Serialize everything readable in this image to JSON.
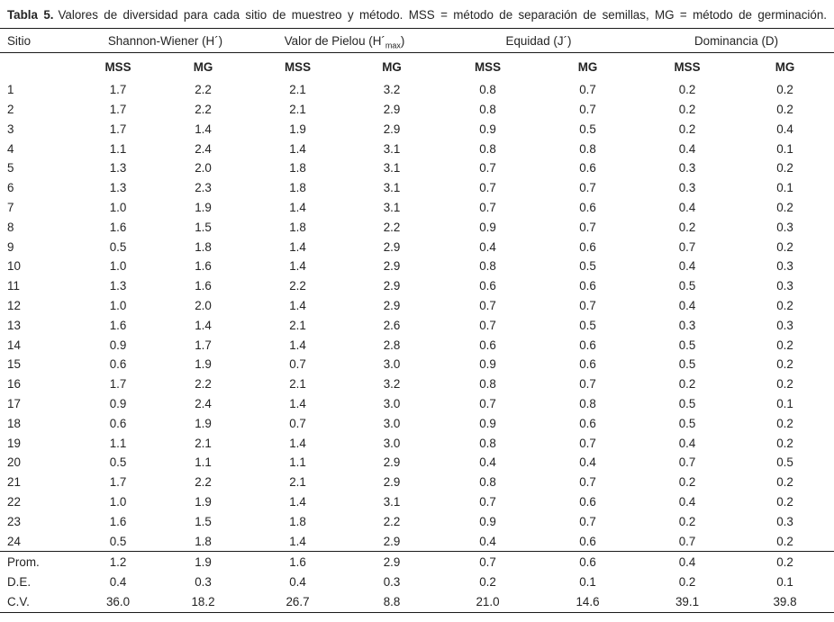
{
  "caption": {
    "label": "Tabla 5.",
    "text": "Valores de diversidad para cada sitio de muestreo y método. MSS = método de separación de semillas, MG = método de germinación."
  },
  "header": {
    "site": "Sitio",
    "groups": {
      "shannon": "Shannon-Wiener (H´)",
      "pielou_pre": "Valor de Pielou (H´",
      "pielou_sub": "max",
      "pielou_post": ")",
      "equidad": "Equidad (J´)",
      "dominancia": "Dominancia (D)"
    },
    "subcols": [
      "MSS",
      "MG",
      "MSS",
      "MG",
      "MSS",
      "MG",
      "MSS",
      "MG"
    ]
  },
  "table": {
    "rows": [
      [
        "1",
        "1.7",
        "2.2",
        "2.1",
        "3.2",
        "0.8",
        "0.7",
        "0.2",
        "0.2"
      ],
      [
        "2",
        "1.7",
        "2.2",
        "2.1",
        "2.9",
        "0.8",
        "0.7",
        "0.2",
        "0.2"
      ],
      [
        "3",
        "1.7",
        "1.4",
        "1.9",
        "2.9",
        "0.9",
        "0.5",
        "0.2",
        "0.4"
      ],
      [
        "4",
        "1.1",
        "2.4",
        "1.4",
        "3.1",
        "0.8",
        "0.8",
        "0.4",
        "0.1"
      ],
      [
        "5",
        "1.3",
        "2.0",
        "1.8",
        "3.1",
        "0.7",
        "0.6",
        "0.3",
        "0.2"
      ],
      [
        "6",
        "1.3",
        "2.3",
        "1.8",
        "3.1",
        "0.7",
        "0.7",
        "0.3",
        "0.1"
      ],
      [
        "7",
        "1.0",
        "1.9",
        "1.4",
        "3.1",
        "0.7",
        "0.6",
        "0.4",
        "0.2"
      ],
      [
        "8",
        "1.6",
        "1.5",
        "1.8",
        "2.2",
        "0.9",
        "0.7",
        "0.2",
        "0.3"
      ],
      [
        "9",
        "0.5",
        "1.8",
        "1.4",
        "2.9",
        "0.4",
        "0.6",
        "0.7",
        "0.2"
      ],
      [
        "10",
        "1.0",
        "1.6",
        "1.4",
        "2.9",
        "0.8",
        "0.5",
        "0.4",
        "0.3"
      ],
      [
        "11",
        "1.3",
        "1.6",
        "2.2",
        "2.9",
        "0.6",
        "0.6",
        "0.5",
        "0.3"
      ],
      [
        "12",
        "1.0",
        "2.0",
        "1.4",
        "2.9",
        "0.7",
        "0.7",
        "0.4",
        "0.2"
      ],
      [
        "13",
        "1.6",
        "1.4",
        "2.1",
        "2.6",
        "0.7",
        "0.5",
        "0.3",
        "0.3"
      ],
      [
        "14",
        "0.9",
        "1.7",
        "1.4",
        "2.8",
        "0.6",
        "0.6",
        "0.5",
        "0.2"
      ],
      [
        "15",
        "0.6",
        "1.9",
        "0.7",
        "3.0",
        "0.9",
        "0.6",
        "0.5",
        "0.2"
      ],
      [
        "16",
        "1.7",
        "2.2",
        "2.1",
        "3.2",
        "0.8",
        "0.7",
        "0.2",
        "0.2"
      ],
      [
        "17",
        "0.9",
        "2.4",
        "1.4",
        "3.0",
        "0.7",
        "0.8",
        "0.5",
        "0.1"
      ],
      [
        "18",
        "0.6",
        "1.9",
        "0.7",
        "3.0",
        "0.9",
        "0.6",
        "0.5",
        "0.2"
      ],
      [
        "19",
        "1.1",
        "2.1",
        "1.4",
        "3.0",
        "0.8",
        "0.7",
        "0.4",
        "0.2"
      ],
      [
        "20",
        "0.5",
        "1.1",
        "1.1",
        "2.9",
        "0.4",
        "0.4",
        "0.7",
        "0.5"
      ],
      [
        "21",
        "1.7",
        "2.2",
        "2.1",
        "2.9",
        "0.8",
        "0.7",
        "0.2",
        "0.2"
      ],
      [
        "22",
        "1.0",
        "1.9",
        "1.4",
        "3.1",
        "0.7",
        "0.6",
        "0.4",
        "0.2"
      ],
      [
        "23",
        "1.6",
        "1.5",
        "1.8",
        "2.2",
        "0.9",
        "0.7",
        "0.2",
        "0.3"
      ],
      [
        "24",
        "0.5",
        "1.8",
        "1.4",
        "2.9",
        "0.4",
        "0.6",
        "0.7",
        "0.2"
      ]
    ],
    "summary_rows": [
      [
        "Prom.",
        "1.2",
        "1.9",
        "1.6",
        "2.9",
        "0.7",
        "0.6",
        "0.4",
        "0.2"
      ],
      [
        "D.E.",
        "0.4",
        "0.3",
        "0.4",
        "0.3",
        "0.2",
        "0.1",
        "0.2",
        "0.1"
      ],
      [
        "C.V.",
        "36.0",
        "18.2",
        "26.7",
        "8.8",
        "21.0",
        "14.6",
        "39.1",
        "39.8"
      ]
    ]
  },
  "colors": {
    "background": "#ffffff",
    "text": "#242424",
    "rule": "#1a1a1a"
  }
}
